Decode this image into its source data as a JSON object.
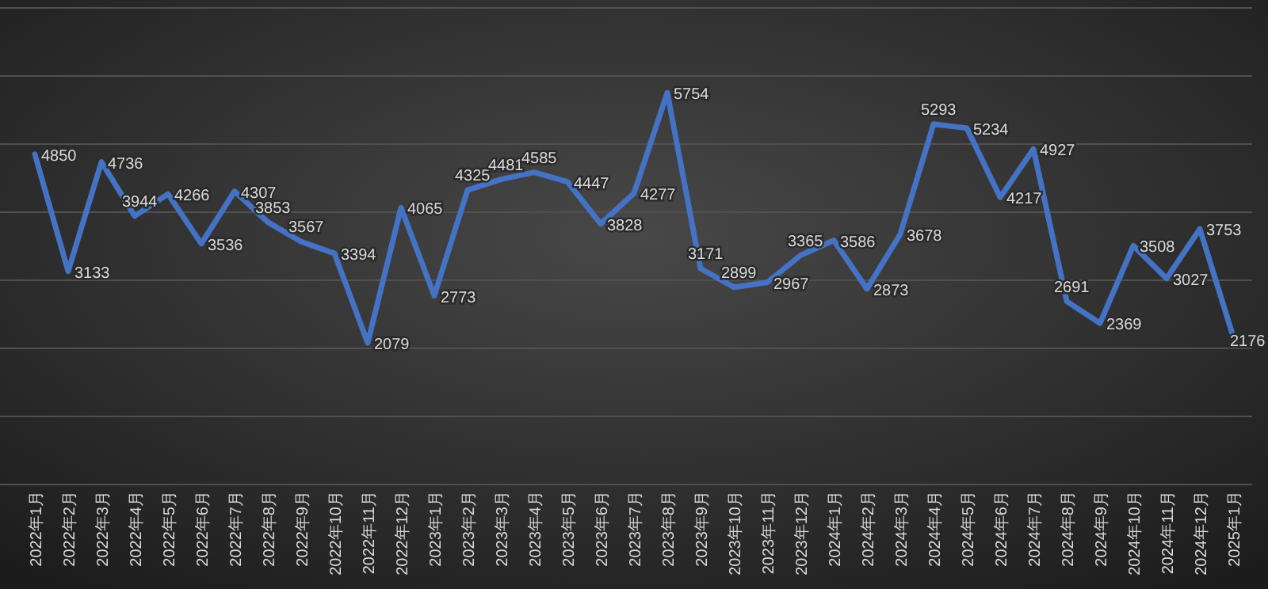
{
  "chart_data": {
    "type": "line",
    "categories": [
      "2022年1月",
      "2022年2月",
      "2022年3月",
      "2022年4月",
      "2022年5月",
      "2022年6月",
      "2022年7月",
      "2022年8月",
      "2022年9月",
      "2022年10月",
      "2022年11月",
      "2022年12月",
      "2023年1月",
      "2023年2月",
      "2023年3月",
      "2023年4月",
      "2023年5月",
      "2023年6月",
      "2023年7月",
      "2023年8月",
      "2023年9月",
      "2023年10月",
      "2023年11月",
      "2023年12月",
      "2024年1月",
      "2024年2月",
      "2024年3月",
      "2024年4月",
      "2024年5月",
      "2024年6月",
      "2024年7月",
      "2024年8月",
      "2024年9月",
      "2024年10月",
      "2024年11月",
      "2024年12月",
      "2025年1月"
    ],
    "series": [
      {
        "color": "#4472c4",
        "values": [
          4850,
          3133,
          4736,
          3944,
          4266,
          3536,
          4307,
          3853,
          3567,
          3394,
          2079,
          4065,
          2773,
          4325,
          4481,
          4585,
          4447,
          3828,
          4277,
          5754,
          3171,
          2899,
          2967,
          3365,
          3586,
          2873,
          3678,
          5293,
          5234,
          4217,
          4927,
          2691,
          2369,
          3508,
          3027,
          3753,
          2176
        ]
      }
    ],
    "ylim": [
      0,
      7000
    ],
    "yticks": [
      {
        "value": 0,
        "label": null
      },
      {
        "value": 1000,
        "label": null
      },
      {
        "value": 2000,
        "label": null
      },
      {
        "value": 3000,
        "label": null
      },
      {
        "value": 4000,
        "label": null
      },
      {
        "value": 5000,
        "label": null
      },
      {
        "value": 6000,
        "label": null
      },
      {
        "value": 7000,
        "label": null
      }
    ],
    "tick_labels": "x",
    "grid": "y",
    "data_labels": true,
    "marker": "none",
    "line_style": "solid"
  }
}
